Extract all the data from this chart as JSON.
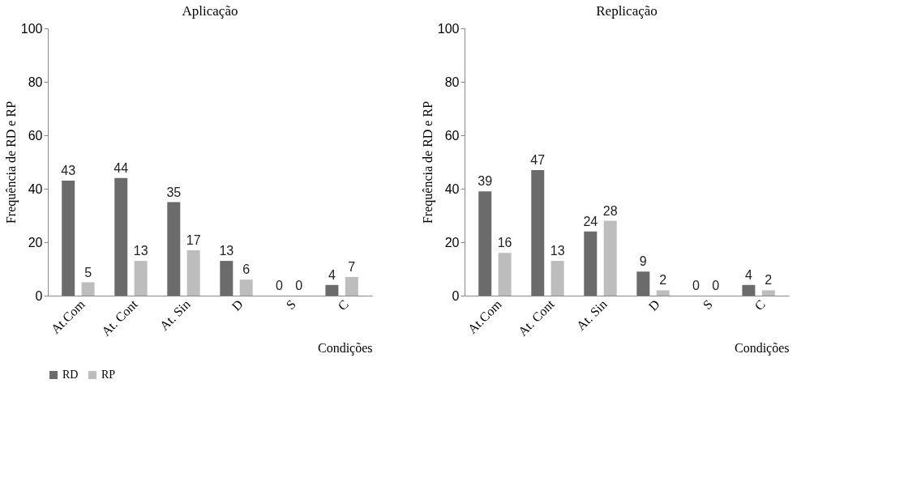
{
  "chart_data": [
    {
      "type": "bar",
      "title": "Aplicação",
      "xlabel": "Condições",
      "ylabel": "Frequência de RD e RP",
      "categories": [
        "At.Com",
        "At. Cont",
        "At. Sin",
        "D",
        "S",
        "C"
      ],
      "series": [
        {
          "name": "RD",
          "color": "#6b6b6b",
          "values": [
            43,
            44,
            35,
            13,
            0,
            4
          ]
        },
        {
          "name": "RP",
          "color": "#bdbdbd",
          "values": [
            5,
            13,
            17,
            6,
            0,
            7
          ]
        }
      ],
      "ylim": [
        0,
        100
      ],
      "yticks": [
        0,
        20,
        40,
        60,
        80,
        100
      ],
      "grid": false,
      "legend": "bottom",
      "data_labels": true
    },
    {
      "type": "bar",
      "title": "Replicação",
      "xlabel": "Condições",
      "ylabel": "Frequência de RD e RP",
      "categories": [
        "At.Com",
        "At. Cont",
        "At. Sin",
        "D",
        "S",
        "C"
      ],
      "series": [
        {
          "name": "RD",
          "color": "#6b6b6b",
          "values": [
            39,
            47,
            24,
            9,
            0,
            4
          ]
        },
        {
          "name": "RP",
          "color": "#bdbdbd",
          "values": [
            16,
            13,
            28,
            2,
            0,
            2
          ]
        }
      ],
      "ylim": [
        0,
        100
      ],
      "yticks": [
        0,
        20,
        40,
        60,
        80,
        100
      ],
      "grid": false,
      "legend": "bottom",
      "data_labels": true
    }
  ]
}
